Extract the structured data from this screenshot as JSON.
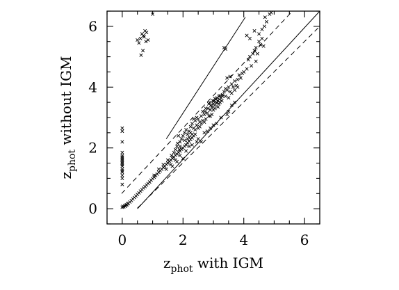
{
  "chart_data": {
    "type": "scatter",
    "title": "",
    "xlabel": {
      "base": "z",
      "sub": "phot",
      "rest": " with IGM"
    },
    "ylabel": {
      "base": "z",
      "sub": "phot",
      "rest": " without IGM"
    },
    "xlim": [
      -0.5,
      6.5
    ],
    "ylim": [
      -0.5,
      6.5
    ],
    "xticks": [
      0,
      2,
      4,
      6
    ],
    "yticks": [
      0,
      2,
      4,
      6
    ],
    "xtick_labels": [
      "0",
      "2",
      "4",
      "6"
    ],
    "ytick_labels": [
      "0",
      "2",
      "4",
      "6"
    ],
    "minor_tick_step": 0.5,
    "grid": false,
    "marker": "x",
    "reference_lines": [
      {
        "style": "solid",
        "points": [
          [
            1.45,
            2.3
          ],
          [
            4.05,
            6.3
          ]
        ]
      },
      {
        "style": "solid",
        "points": [
          [
            0.5,
            0.0
          ],
          [
            6.5,
            6.5
          ]
        ]
      },
      {
        "style": "dashed",
        "points": [
          [
            -0.02,
            0.5
          ],
          [
            5.6,
            6.5
          ]
        ]
      },
      {
        "style": "dashed",
        "points": [
          [
            0.5,
            0.02
          ],
          [
            6.5,
            6.0
          ]
        ]
      }
    ],
    "series": [
      {
        "points": [
          [
            0.0,
            0.05
          ],
          [
            0.02,
            0.08
          ],
          [
            0.05,
            0.06
          ],
          [
            0.08,
            0.1
          ],
          [
            0.1,
            0.08
          ],
          [
            0.12,
            0.12
          ],
          [
            0.15,
            0.13
          ],
          [
            0.18,
            0.16
          ],
          [
            0.2,
            0.18
          ],
          [
            0.25,
            0.22
          ],
          [
            0.3,
            0.27
          ],
          [
            0.35,
            0.32
          ],
          [
            0.4,
            0.37
          ],
          [
            0.45,
            0.42
          ],
          [
            0.5,
            0.47
          ],
          [
            0.55,
            0.52
          ],
          [
            0.6,
            0.58
          ],
          [
            0.65,
            0.63
          ],
          [
            0.7,
            0.68
          ],
          [
            0.75,
            0.73
          ],
          [
            0.8,
            0.78
          ],
          [
            0.85,
            0.83
          ],
          [
            0.9,
            0.88
          ],
          [
            0.95,
            0.94
          ],
          [
            1.0,
            0.99
          ],
          [
            1.05,
            1.04
          ],
          [
            1.1,
            1.09
          ],
          [
            1.15,
            1.14
          ],
          [
            1.2,
            1.2
          ],
          [
            1.25,
            1.25
          ],
          [
            1.3,
            1.3
          ],
          [
            1.35,
            1.36
          ],
          [
            1.4,
            1.4
          ],
          [
            1.45,
            1.46
          ],
          [
            1.5,
            1.5
          ],
          [
            1.55,
            1.56
          ],
          [
            1.6,
            1.6
          ],
          [
            1.65,
            1.66
          ],
          [
            1.7,
            1.7
          ],
          [
            1.75,
            1.76
          ],
          [
            1.8,
            1.8
          ],
          [
            1.85,
            1.86
          ],
          [
            1.9,
            1.9
          ],
          [
            1.95,
            1.96
          ],
          [
            2.0,
            2.0
          ],
          [
            2.05,
            2.06
          ],
          [
            2.1,
            2.1
          ],
          [
            2.15,
            2.17
          ],
          [
            2.2,
            2.22
          ],
          [
            2.25,
            2.28
          ],
          [
            2.3,
            2.33
          ],
          [
            2.35,
            2.4
          ],
          [
            2.4,
            2.45
          ],
          [
            1.05,
            1.1
          ],
          [
            1.2,
            1.3
          ],
          [
            1.35,
            1.45
          ],
          [
            1.5,
            1.6
          ],
          [
            1.62,
            1.75
          ],
          [
            1.7,
            1.85
          ],
          [
            1.75,
            1.95
          ],
          [
            1.8,
            2.05
          ],
          [
            1.82,
            2.15
          ],
          [
            1.88,
            1.95
          ],
          [
            1.9,
            2.2
          ],
          [
            1.95,
            2.3
          ],
          [
            2.0,
            2.4
          ],
          [
            2.05,
            2.5
          ],
          [
            2.1,
            2.6
          ],
          [
            2.15,
            2.45
          ],
          [
            2.2,
            2.55
          ],
          [
            2.25,
            2.7
          ],
          [
            2.3,
            2.8
          ],
          [
            2.35,
            2.65
          ],
          [
            2.4,
            2.9
          ],
          [
            2.45,
            2.75
          ],
          [
            2.5,
            2.95
          ],
          [
            2.55,
            2.85
          ],
          [
            2.6,
            3.05
          ],
          [
            2.65,
            2.9
          ],
          [
            2.7,
            3.1
          ],
          [
            2.72,
            3.2
          ],
          [
            2.75,
            2.95
          ],
          [
            2.8,
            3.15
          ],
          [
            2.82,
            3.3
          ],
          [
            2.85,
            3.05
          ],
          [
            2.9,
            3.25
          ],
          [
            2.92,
            3.4
          ],
          [
            2.95,
            3.35
          ],
          [
            3.0,
            3.45
          ],
          [
            3.02,
            3.55
          ],
          [
            3.05,
            3.4
          ],
          [
            3.08,
            3.6
          ],
          [
            3.1,
            3.5
          ],
          [
            3.12,
            3.65
          ],
          [
            3.15,
            3.55
          ],
          [
            3.18,
            3.7
          ],
          [
            3.2,
            3.6
          ],
          [
            3.22,
            3.5
          ],
          [
            3.25,
            3.65
          ],
          [
            3.28,
            3.55
          ],
          [
            3.3,
            3.7
          ],
          [
            3.05,
            3.3
          ],
          [
            3.0,
            3.25
          ],
          [
            2.95,
            3.1
          ],
          [
            2.98,
            3.55
          ],
          [
            3.05,
            3.62
          ],
          [
            3.12,
            3.48
          ],
          [
            3.18,
            3.45
          ],
          [
            3.22,
            3.72
          ],
          [
            2.88,
            3.5
          ],
          [
            2.9,
            3.05
          ],
          [
            3.15,
            3.35
          ],
          [
            2.2,
            2.35
          ],
          [
            2.4,
            2.6
          ],
          [
            2.55,
            2.7
          ],
          [
            2.6,
            2.8
          ],
          [
            2.7,
            2.85
          ],
          [
            2.75,
            3.3
          ],
          [
            2.5,
            2.65
          ],
          [
            2.45,
            3.0
          ],
          [
            2.35,
            2.95
          ],
          [
            2.25,
            2.5
          ],
          [
            2.15,
            2.3
          ],
          [
            2.05,
            2.25
          ],
          [
            1.9,
            2.05
          ],
          [
            1.85,
            2.4
          ],
          [
            2.3,
            2.45
          ],
          [
            2.65,
            3.2
          ],
          [
            2.85,
            3.45
          ],
          [
            3.3,
            3.75
          ],
          [
            3.35,
            3.85
          ],
          [
            3.4,
            3.7
          ],
          [
            3.45,
            3.9
          ],
          [
            3.5,
            4.0
          ],
          [
            3.55,
            3.85
          ],
          [
            3.6,
            4.1
          ],
          [
            3.65,
            4.0
          ],
          [
            3.7,
            4.2
          ],
          [
            3.75,
            4.05
          ],
          [
            3.8,
            4.25
          ],
          [
            3.85,
            4.4
          ],
          [
            3.9,
            4.3
          ],
          [
            3.95,
            4.45
          ],
          [
            4.0,
            4.5
          ],
          [
            3.4,
            3.95
          ],
          [
            3.5,
            3.65
          ],
          [
            3.6,
            3.8
          ],
          [
            3.7,
            3.9
          ],
          [
            3.8,
            4.0
          ],
          [
            3.45,
            4.3
          ],
          [
            3.55,
            4.35
          ],
          [
            3.35,
            5.3
          ],
          [
            3.4,
            5.25
          ],
          [
            4.1,
            4.6
          ],
          [
            4.15,
            4.9
          ],
          [
            4.2,
            5.0
          ],
          [
            4.25,
            4.7
          ],
          [
            4.3,
            5.1
          ],
          [
            4.35,
            5.2
          ],
          [
            4.4,
            5.3
          ],
          [
            4.45,
            5.1
          ],
          [
            4.5,
            5.5
          ],
          [
            4.55,
            5.4
          ],
          [
            4.6,
            5.6
          ],
          [
            4.65,
            5.35
          ],
          [
            4.5,
            5.75
          ],
          [
            4.6,
            5.9
          ],
          [
            4.68,
            6.0
          ],
          [
            4.75,
            6.15
          ],
          [
            4.7,
            6.3
          ],
          [
            4.85,
            6.4
          ],
          [
            4.9,
            6.45
          ],
          [
            4.2,
            5.6
          ],
          [
            4.35,
            5.85
          ],
          [
            4.1,
            5.7
          ],
          [
            4.4,
            4.85
          ],
          [
            2.5,
            2.3
          ],
          [
            2.7,
            2.5
          ],
          [
            2.9,
            2.65
          ],
          [
            3.1,
            2.8
          ],
          [
            3.25,
            3.0
          ],
          [
            2.6,
            2.2
          ],
          [
            2.1,
            1.9
          ],
          [
            2.3,
            2.1
          ],
          [
            1.9,
            1.75
          ],
          [
            1.75,
            1.6
          ],
          [
            1.6,
            1.45
          ],
          [
            1.45,
            1.3
          ],
          [
            3.45,
            3.1
          ],
          [
            3.5,
            3.2
          ],
          [
            3.6,
            3.4
          ],
          [
            3.7,
            3.5
          ],
          [
            2.0,
            1.65
          ],
          [
            2.2,
            2.05
          ],
          [
            2.45,
            2.2
          ],
          [
            2.8,
            2.55
          ],
          [
            3.0,
            2.75
          ],
          [
            1.8,
            1.55
          ],
          [
            1.65,
            1.4
          ],
          [
            0.0,
            0.8
          ],
          [
            0.0,
            1.0
          ],
          [
            0.0,
            1.1
          ],
          [
            0.0,
            1.2
          ],
          [
            0.0,
            1.25
          ],
          [
            0.0,
            1.3
          ],
          [
            0.0,
            1.4
          ],
          [
            0.0,
            1.45
          ],
          [
            0.0,
            1.5
          ],
          [
            0.0,
            1.55
          ],
          [
            0.0,
            1.6
          ],
          [
            0.0,
            1.65
          ],
          [
            0.0,
            1.7
          ],
          [
            0.0,
            1.75
          ],
          [
            0.0,
            1.85
          ],
          [
            0.0,
            2.2
          ],
          [
            0.0,
            2.55
          ],
          [
            0.0,
            2.65
          ],
          [
            0.5,
            5.55
          ],
          [
            0.55,
            5.45
          ],
          [
            0.6,
            5.6
          ],
          [
            0.65,
            5.75
          ],
          [
            0.7,
            5.7
          ],
          [
            0.72,
            5.65
          ],
          [
            0.75,
            5.85
          ],
          [
            0.8,
            5.8
          ],
          [
            0.85,
            5.55
          ],
          [
            0.78,
            5.5
          ],
          [
            0.62,
            5.05
          ],
          [
            0.68,
            5.2
          ],
          [
            1.0,
            6.4
          ]
        ]
      }
    ]
  }
}
